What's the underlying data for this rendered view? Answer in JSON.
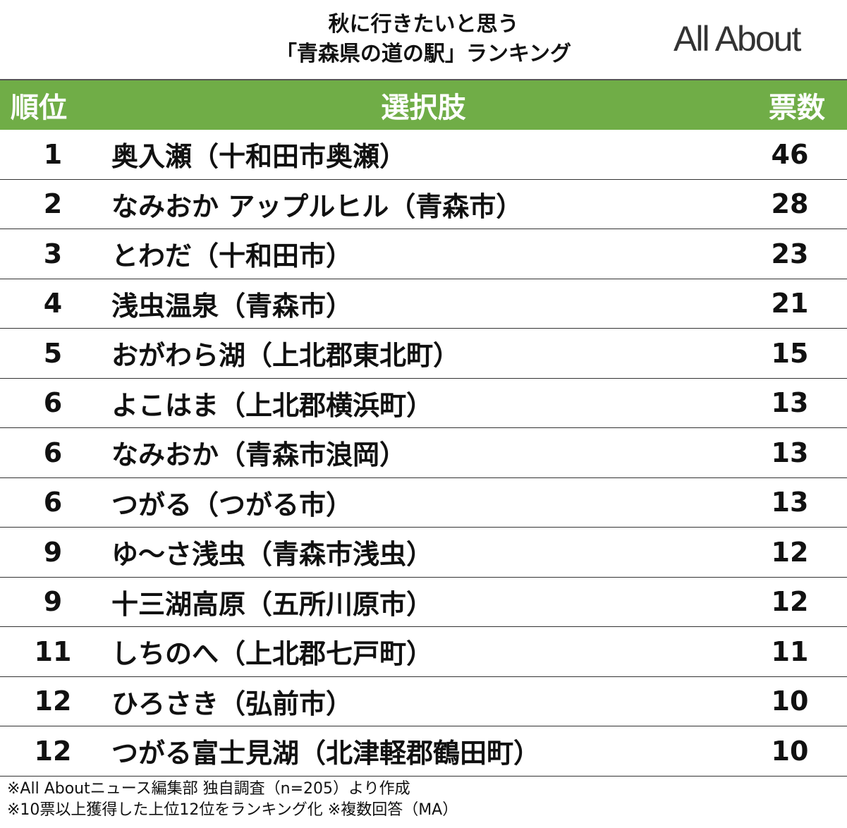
{
  "header": {
    "title_lines": [
      "秋に行きたいと思う",
      "「青森県の道の駅」ランキング"
    ],
    "logo": "All About"
  },
  "table": {
    "columns": [
      "順位",
      "選択肢",
      "票数"
    ],
    "rows": [
      [
        1,
        "奥入瀬（十和田市奥瀬）",
        46
      ],
      [
        2,
        "なみおか アップルヒル（青森市）",
        28
      ],
      [
        3,
        "とわだ（十和田市）",
        23
      ],
      [
        4,
        "浅虫温泉（青森市）",
        21
      ],
      [
        5,
        "おがわら湖（上北郡東北町）",
        15
      ],
      [
        6,
        "よこはま（上北郡横浜町）",
        13
      ],
      [
        6,
        "なみおか（青森市浪岡）",
        13
      ],
      [
        6,
        "つがる（つがる市）",
        13
      ],
      [
        9,
        "ゆ～さ浅虫（青森市浅虫）",
        12
      ],
      [
        9,
        "十三湖高原（五所川原市）",
        12
      ],
      [
        11,
        "しちのへ（上北郡七戸町）",
        11
      ],
      [
        12,
        "ひろさき（弘前市）",
        10
      ],
      [
        12,
        "つがる富士見湖（北津軽郡鶴田町）",
        10
      ]
    ]
  },
  "footer": {
    "notes": [
      "※All Aboutニュース編集部 独自調査（n=205）より作成",
      "※10票以上獲得した上位12位をランキング化 ※複数回答（MA）"
    ]
  }
}
